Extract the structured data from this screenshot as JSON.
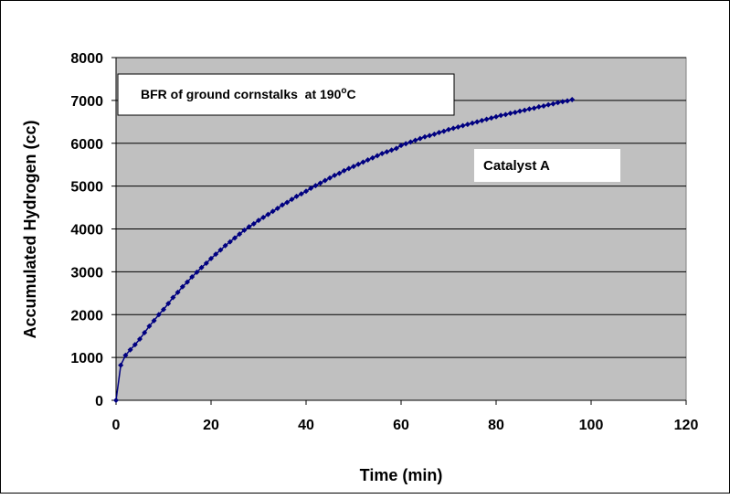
{
  "chart_data": {
    "type": "scatter",
    "xlabel": "Time (min)",
    "ylabel": "Accumulated Hydrogen (cc)",
    "xlim": [
      0,
      120
    ],
    "ylim": [
      0,
      8000
    ],
    "xticks": [
      0,
      20,
      40,
      60,
      80,
      100,
      120
    ],
    "yticks": [
      0,
      1000,
      2000,
      3000,
      4000,
      5000,
      6000,
      7000,
      8000
    ],
    "grid": "horizontal",
    "annotations": {
      "title_box": {
        "prefix": "BFR of ground cornstalks  at 190",
        "sup": "o",
        "suffix": "C"
      },
      "series_label": "Catalyst A"
    },
    "colors": {
      "plot_bg": "#c0c0c0",
      "series": "#000080",
      "grid": "#000000"
    },
    "series": [
      {
        "marker": "diamond",
        "x": [
          0,
          1,
          2,
          3,
          4,
          5,
          6,
          7,
          8,
          9,
          10,
          11,
          12,
          13,
          14,
          15,
          16,
          17,
          18,
          19,
          20,
          21,
          22,
          23,
          24,
          25,
          26,
          27,
          28,
          29,
          30,
          31,
          32,
          33,
          34,
          35,
          36,
          37,
          38,
          39,
          40,
          41,
          42,
          43,
          44,
          45,
          46,
          47,
          48,
          49,
          50,
          51,
          52,
          53,
          54,
          55,
          56,
          57,
          58,
          59,
          60,
          61,
          62,
          63,
          64,
          65,
          66,
          67,
          68,
          69,
          70,
          71,
          72,
          73,
          74,
          75,
          76,
          77,
          78,
          79,
          80,
          81,
          82,
          83,
          84,
          85,
          86,
          87,
          88,
          89,
          90,
          91,
          92,
          93,
          94,
          95,
          96
        ],
        "y": [
          0,
          820,
          1050,
          1180,
          1300,
          1430,
          1580,
          1730,
          1860,
          2000,
          2120,
          2260,
          2400,
          2520,
          2650,
          2760,
          2880,
          2990,
          3100,
          3200,
          3310,
          3410,
          3510,
          3610,
          3700,
          3790,
          3880,
          3970,
          4050,
          4120,
          4200,
          4270,
          4340,
          4410,
          4480,
          4560,
          4620,
          4690,
          4760,
          4820,
          4880,
          4950,
          5010,
          5070,
          5130,
          5190,
          5250,
          5300,
          5360,
          5410,
          5460,
          5510,
          5560,
          5610,
          5660,
          5710,
          5760,
          5800,
          5840,
          5880,
          5950,
          5990,
          6030,
          6070,
          6110,
          6150,
          6180,
          6210,
          6250,
          6280,
          6320,
          6350,
          6380,
          6410,
          6440,
          6470,
          6500,
          6530,
          6560,
          6590,
          6620,
          6650,
          6670,
          6700,
          6720,
          6750,
          6770,
          6800,
          6820,
          6850,
          6870,
          6900,
          6920,
          6950,
          6970,
          6990,
          7020
        ]
      }
    ]
  }
}
